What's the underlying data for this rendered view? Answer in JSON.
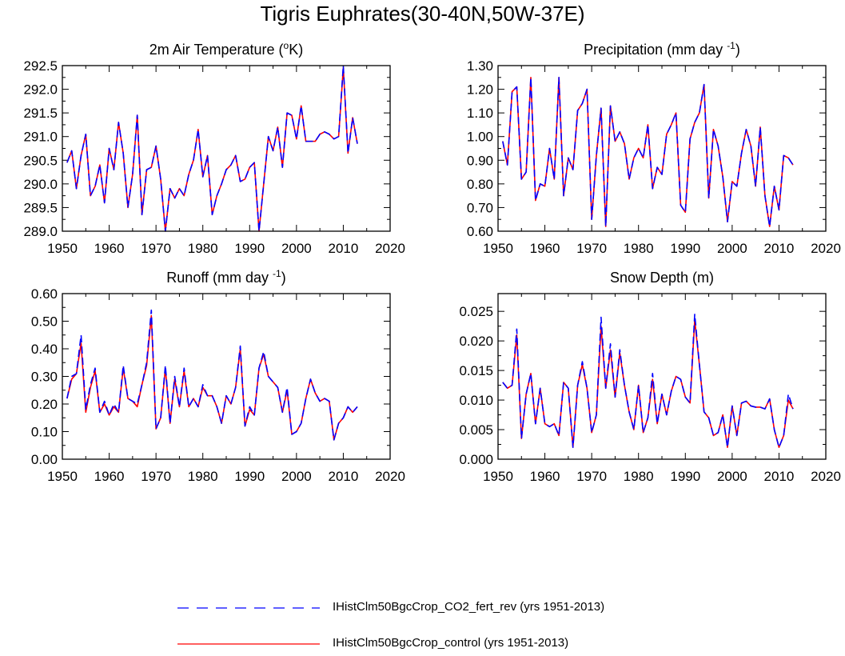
{
  "title": "Tigris Euphrates(30-40N,50W-37E)",
  "legend": {
    "items": [
      {
        "label": "IHistClm50BgcCrop_CO2_fert_rev (yrs 1951-2013)",
        "color": "#0000ff",
        "style": "dashed"
      },
      {
        "label": "IHistClm50BgcCrop_control (yrs 1951-2013)",
        "color": "#ff0000",
        "style": "solid"
      }
    ]
  },
  "chart_data": [
    {
      "type": "line",
      "title": "2m Air Temperature",
      "title_unit": "K",
      "x_ticks": [
        1950,
        1960,
        1970,
        1980,
        1990,
        2000,
        2010,
        2020
      ],
      "xlim": [
        1950,
        2020
      ],
      "ylim": [
        289.0,
        292.5
      ],
      "y_ticks": [
        "289.0",
        "289.5",
        "290.0",
        "290.5",
        "291.0",
        "291.5",
        "292.0",
        "292.5"
      ],
      "y_tick_values": [
        289.0,
        289.5,
        290.0,
        290.5,
        291.0,
        291.5,
        292.0,
        292.5
      ],
      "x_start": 1951,
      "series": [
        {
          "name": "IHistClm50BgcCrop_CO2_fert_rev",
          "color": "#0000ff",
          "style": "dashed",
          "values": [
            290.45,
            290.7,
            289.9,
            290.6,
            291.05,
            289.75,
            289.95,
            290.4,
            289.6,
            290.75,
            290.3,
            291.3,
            290.65,
            289.5,
            290.2,
            291.45,
            289.35,
            290.3,
            290.35,
            290.8,
            290.1,
            289.0,
            289.9,
            289.7,
            289.9,
            289.75,
            290.2,
            290.5,
            291.15,
            290.15,
            290.6,
            289.35,
            289.75,
            290.0,
            290.3,
            290.4,
            290.6,
            290.05,
            290.1,
            290.35,
            290.45,
            289.0,
            290.0,
            291.0,
            290.7,
            291.2,
            290.35,
            291.5,
            291.45,
            290.95,
            291.65,
            290.9,
            290.9,
            290.9,
            291.05,
            291.1,
            291.05,
            290.95,
            291.0,
            292.5,
            290.65,
            291.4,
            290.85
          ]
        },
        {
          "name": "IHistClm50BgcCrop_control",
          "color": "#ff0000",
          "style": "solid",
          "values": [
            290.45,
            290.7,
            289.9,
            290.6,
            291.05,
            289.75,
            289.95,
            290.4,
            289.6,
            290.75,
            290.3,
            291.3,
            290.65,
            289.5,
            290.2,
            291.45,
            289.35,
            290.3,
            290.35,
            290.8,
            290.1,
            289.0,
            289.9,
            289.7,
            289.9,
            289.75,
            290.2,
            290.5,
            291.15,
            290.15,
            290.6,
            289.35,
            289.75,
            290.0,
            290.3,
            290.4,
            290.6,
            290.05,
            290.1,
            290.35,
            290.45,
            289.0,
            290.0,
            291.0,
            290.7,
            291.2,
            290.35,
            291.5,
            291.45,
            290.95,
            291.65,
            290.9,
            290.9,
            290.9,
            291.05,
            291.1,
            291.05,
            290.95,
            291.0,
            292.45,
            290.65,
            291.4,
            290.85
          ]
        }
      ]
    },
    {
      "type": "line",
      "title": "Precipitation (mm day",
      "title_sup": "-1",
      "title_tail": ")",
      "x_ticks": [
        1950,
        1960,
        1970,
        1980,
        1990,
        2000,
        2010,
        2020
      ],
      "xlim": [
        1950,
        2020
      ],
      "ylim": [
        0.6,
        1.3
      ],
      "y_ticks": [
        "0.60",
        "0.70",
        "0.80",
        "0.90",
        "1.00",
        "1.10",
        "1.20",
        "1.30"
      ],
      "y_tick_values": [
        0.6,
        0.7,
        0.8,
        0.9,
        1.0,
        1.1,
        1.2,
        1.3
      ],
      "x_start": 1951,
      "series": [
        {
          "name": "IHistClm50BgcCrop_CO2_fert_rev",
          "color": "#0000ff",
          "style": "dashed",
          "values": [
            0.98,
            0.88,
            1.19,
            1.21,
            0.82,
            0.85,
            1.25,
            0.73,
            0.8,
            0.79,
            0.95,
            0.82,
            1.25,
            0.75,
            0.91,
            0.86,
            1.11,
            1.14,
            1.2,
            0.65,
            0.92,
            1.12,
            0.62,
            1.13,
            0.98,
            1.02,
            0.97,
            0.82,
            0.91,
            0.95,
            0.91,
            1.05,
            0.78,
            0.87,
            0.84,
            1.01,
            1.05,
            1.1,
            0.71,
            0.68,
            0.99,
            1.06,
            1.1,
            1.22,
            0.74,
            1.03,
            0.96,
            0.83,
            0.64,
            0.81,
            0.79,
            0.93,
            1.03,
            0.96,
            0.79,
            1.04,
            0.75,
            0.62,
            0.79,
            0.69,
            0.92,
            0.91,
            0.88
          ]
        },
        {
          "name": "IHistClm50BgcCrop_control",
          "color": "#ff0000",
          "style": "solid",
          "values": [
            0.98,
            0.88,
            1.19,
            1.21,
            0.82,
            0.85,
            1.25,
            0.73,
            0.8,
            0.79,
            0.95,
            0.82,
            1.25,
            0.75,
            0.91,
            0.86,
            1.11,
            1.14,
            1.2,
            0.65,
            0.92,
            1.12,
            0.62,
            1.13,
            0.98,
            1.02,
            0.97,
            0.82,
            0.91,
            0.95,
            0.91,
            1.05,
            0.78,
            0.87,
            0.84,
            1.01,
            1.05,
            1.1,
            0.71,
            0.68,
            0.99,
            1.06,
            1.1,
            1.22,
            0.74,
            1.03,
            0.96,
            0.83,
            0.64,
            0.81,
            0.79,
            0.93,
            1.03,
            0.96,
            0.79,
            1.04,
            0.75,
            0.62,
            0.79,
            0.69,
            0.92,
            0.91,
            0.88
          ]
        }
      ]
    },
    {
      "type": "line",
      "title": "Runoff (mm day",
      "title_sup": "-1",
      "title_tail": ")",
      "x_ticks": [
        1950,
        1960,
        1970,
        1980,
        1990,
        2000,
        2010,
        2020
      ],
      "xlim": [
        1950,
        2020
      ],
      "ylim": [
        0.0,
        0.6
      ],
      "y_ticks": [
        "0.00",
        "0.10",
        "0.20",
        "0.30",
        "0.40",
        "0.50",
        "0.60"
      ],
      "y_tick_values": [
        0.0,
        0.1,
        0.2,
        0.3,
        0.4,
        0.5,
        0.6
      ],
      "x_start": 1951,
      "series": [
        {
          "name": "IHistClm50BgcCrop_CO2_fert_rev",
          "color": "#0000ff",
          "style": "dashed",
          "values": [
            0.22,
            0.3,
            0.31,
            0.45,
            0.18,
            0.27,
            0.33,
            0.17,
            0.21,
            0.16,
            0.2,
            0.17,
            0.34,
            0.22,
            0.21,
            0.2,
            0.27,
            0.35,
            0.54,
            0.11,
            0.15,
            0.34,
            0.13,
            0.3,
            0.19,
            0.33,
            0.19,
            0.22,
            0.19,
            0.27,
            0.23,
            0.23,
            0.19,
            0.13,
            0.23,
            0.2,
            0.26,
            0.41,
            0.12,
            0.19,
            0.16,
            0.33,
            0.39,
            0.3,
            0.28,
            0.26,
            0.17,
            0.26,
            0.09,
            0.1,
            0.13,
            0.22,
            0.29,
            0.24,
            0.21,
            0.22,
            0.21,
            0.07,
            0.13,
            0.15,
            0.19,
            0.17,
            0.19
          ]
        },
        {
          "name": "IHistClm50BgcCrop_control",
          "color": "#ff0000",
          "style": "solid",
          "values": [
            0.22,
            0.29,
            0.31,
            0.42,
            0.17,
            0.26,
            0.32,
            0.17,
            0.2,
            0.16,
            0.19,
            0.17,
            0.33,
            0.22,
            0.21,
            0.19,
            0.27,
            0.34,
            0.52,
            0.11,
            0.15,
            0.33,
            0.13,
            0.29,
            0.19,
            0.32,
            0.19,
            0.22,
            0.19,
            0.26,
            0.23,
            0.23,
            0.19,
            0.13,
            0.23,
            0.2,
            0.26,
            0.4,
            0.12,
            0.18,
            0.16,
            0.33,
            0.38,
            0.3,
            0.28,
            0.26,
            0.17,
            0.25,
            0.09,
            0.1,
            0.13,
            0.22,
            0.29,
            0.24,
            0.21,
            0.22,
            0.21,
            0.07,
            0.13,
            0.15,
            0.19,
            0.17,
            0.19
          ]
        }
      ]
    },
    {
      "type": "line",
      "title": "Snow Depth (m)",
      "x_ticks": [
        1950,
        1960,
        1970,
        1980,
        1990,
        2000,
        2010,
        2020
      ],
      "xlim": [
        1950,
        2020
      ],
      "ylim": [
        0.0,
        0.028
      ],
      "y_ticks": [
        "0.000",
        "0.005",
        "0.010",
        "0.015",
        "0.020",
        "0.025"
      ],
      "y_tick_values": [
        0.0,
        0.005,
        0.01,
        0.015,
        0.02,
        0.025
      ],
      "x_start": 1951,
      "series": [
        {
          "name": "IHistClm50BgcCrop_CO2_fert_rev",
          "color": "#0000ff",
          "style": "dashed",
          "values": [
            0.013,
            0.012,
            0.0125,
            0.022,
            0.0035,
            0.011,
            0.0145,
            0.006,
            0.012,
            0.006,
            0.0055,
            0.006,
            0.004,
            0.013,
            0.012,
            0.002,
            0.0125,
            0.0165,
            0.012,
            0.0045,
            0.0075,
            0.024,
            0.012,
            0.0195,
            0.0105,
            0.0185,
            0.0125,
            0.008,
            0.005,
            0.0125,
            0.0045,
            0.007,
            0.0145,
            0.006,
            0.011,
            0.0075,
            0.0115,
            0.014,
            0.0135,
            0.0105,
            0.0095,
            0.0245,
            0.016,
            0.008,
            0.007,
            0.004,
            0.0045,
            0.0075,
            0.002,
            0.009,
            0.004,
            0.0095,
            0.0098,
            0.009,
            0.0088,
            0.0088,
            0.0085,
            0.0102,
            0.005,
            0.002,
            0.004,
            0.011,
            0.0085
          ]
        },
        {
          "name": "IHistClm50BgcCrop_control",
          "color": "#ff0000",
          "style": "solid",
          "values": [
            0.013,
            0.012,
            0.0125,
            0.021,
            0.0035,
            0.011,
            0.0145,
            0.006,
            0.012,
            0.006,
            0.0055,
            0.006,
            0.004,
            0.013,
            0.012,
            0.002,
            0.0125,
            0.016,
            0.012,
            0.0045,
            0.0075,
            0.0225,
            0.012,
            0.0185,
            0.0105,
            0.018,
            0.0125,
            0.008,
            0.005,
            0.0125,
            0.0045,
            0.007,
            0.0135,
            0.006,
            0.011,
            0.0075,
            0.0115,
            0.014,
            0.0135,
            0.0105,
            0.0095,
            0.0235,
            0.016,
            0.008,
            0.007,
            0.004,
            0.0045,
            0.0075,
            0.002,
            0.009,
            0.004,
            0.0095,
            0.0098,
            0.009,
            0.0088,
            0.0088,
            0.0085,
            0.0102,
            0.005,
            0.002,
            0.004,
            0.01,
            0.0085
          ]
        }
      ]
    }
  ]
}
